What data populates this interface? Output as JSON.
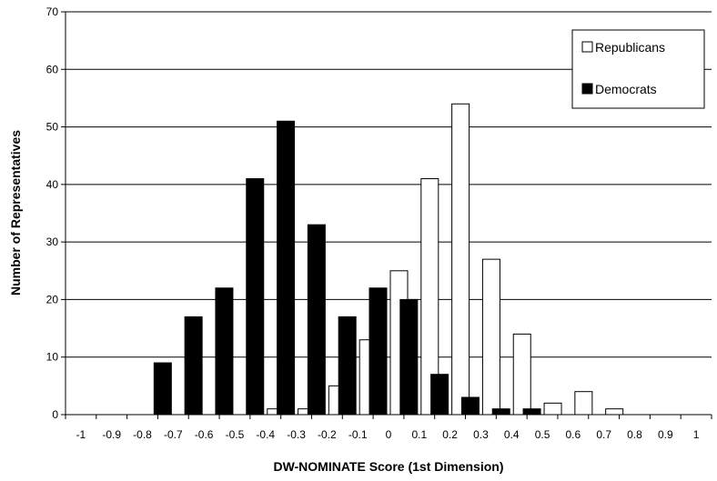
{
  "chart_data": {
    "type": "bar",
    "xlabel": "DW-NOMINATE Score (1st Dimension)",
    "ylabel": "Number of Representatives",
    "ylim": [
      0,
      70
    ],
    "yticks": [
      0,
      10,
      20,
      30,
      40,
      50,
      60,
      70
    ],
    "grid": "horizontal",
    "legend_position": "top-right",
    "categories": [
      "-1",
      "-0.9",
      "-0.8",
      "-0.7",
      "-0.6",
      "-0.5",
      "-0.4",
      "-0.3",
      "-0.2",
      "-0.1",
      "0",
      "0.1",
      "0.2",
      "0.3",
      "0.4",
      "0.5",
      "0.6",
      "0.7",
      "0.8",
      "0.9",
      "1"
    ],
    "series": [
      {
        "name": "Republicans",
        "color": "#ffffff",
        "values": [
          0,
          0,
          0,
          0,
          0,
          0,
          1,
          1,
          5,
          13,
          25,
          41,
          54,
          27,
          14,
          2,
          4,
          1,
          0,
          0,
          0
        ]
      },
      {
        "name": "Democrats",
        "color": "#000000",
        "values": [
          0,
          0,
          0,
          9,
          17,
          22,
          41,
          51,
          33,
          17,
          22,
          20,
          7,
          3,
          1,
          1,
          0,
          0,
          0,
          0,
          0
        ]
      }
    ]
  }
}
